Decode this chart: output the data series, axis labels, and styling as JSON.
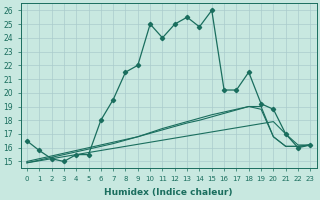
{
  "xlabel": "Humidex (Indice chaleur)",
  "bg_color": "#c8e8e0",
  "line_color": "#1a6e5e",
  "x_humidex": [
    0,
    1,
    2,
    3,
    4,
    5,
    6,
    7,
    8,
    9,
    10,
    11,
    12,
    13,
    14,
    15,
    16,
    17,
    18,
    19,
    20,
    21,
    22,
    23
  ],
  "y_main": [
    16.5,
    15.8,
    15.2,
    15.0,
    15.5,
    15.5,
    18.0,
    19.5,
    21.5,
    22.0,
    25.0,
    24.0,
    25.0,
    25.5,
    24.8,
    26.0,
    20.2,
    20.2,
    21.5,
    19.2,
    18.8,
    17.0,
    16.0,
    16.2
  ],
  "y_line1": [
    14.9,
    15.05,
    15.2,
    15.35,
    15.5,
    15.65,
    15.8,
    15.95,
    16.1,
    16.25,
    16.4,
    16.55,
    16.7,
    16.85,
    17.0,
    17.15,
    17.3,
    17.45,
    17.6,
    17.75,
    17.9,
    17.0,
    16.2,
    16.2
  ],
  "y_line2": [
    14.9,
    15.1,
    15.3,
    15.5,
    15.7,
    15.9,
    16.1,
    16.3,
    16.55,
    16.8,
    17.05,
    17.3,
    17.55,
    17.8,
    18.0,
    18.25,
    18.5,
    18.75,
    19.0,
    18.8,
    16.8,
    16.1,
    16.1,
    16.2
  ],
  "y_line3": [
    15.0,
    15.2,
    15.4,
    15.6,
    15.8,
    16.0,
    16.2,
    16.4,
    16.6,
    16.8,
    17.1,
    17.4,
    17.65,
    17.9,
    18.15,
    18.4,
    18.6,
    18.8,
    19.0,
    19.0,
    16.8,
    16.1,
    16.1,
    16.2
  ],
  "ylim": [
    14.5,
    26.5
  ],
  "yticks": [
    15,
    16,
    17,
    18,
    19,
    20,
    21,
    22,
    23,
    24,
    25,
    26
  ],
  "grid_color": "#aacccc",
  "figsize": [
    3.2,
    2.0
  ],
  "dpi": 100
}
